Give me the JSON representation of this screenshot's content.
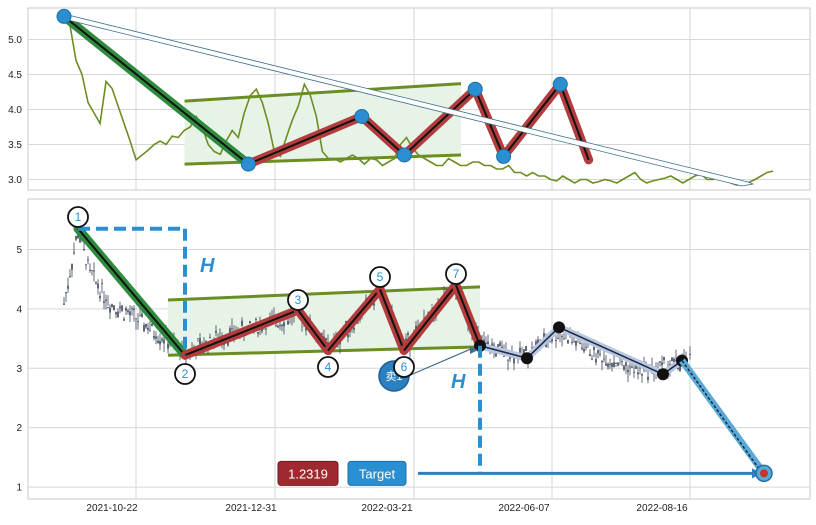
{
  "chart_data": [
    {
      "type": "line",
      "panel": "top",
      "y_ticks": [
        3.0,
        3.5,
        4.0,
        4.5,
        5.0
      ],
      "ylim": [
        2.85,
        5.45
      ],
      "grid": true,
      "price_series": {
        "color": "#6b8e23",
        "x_index": [
          0,
          3,
          6,
          9,
          12,
          15,
          18,
          21,
          24,
          27,
          30,
          33,
          36,
          39,
          42,
          45,
          48,
          51,
          54,
          57,
          60,
          63,
          66,
          69,
          72,
          75,
          78,
          81,
          84,
          87,
          90,
          93,
          96,
          99,
          102,
          105,
          108,
          111,
          114,
          117,
          120,
          123,
          126,
          129,
          132,
          135,
          138,
          141,
          144,
          147,
          150,
          153,
          156,
          159,
          162,
          165,
          168,
          171,
          174,
          177,
          180,
          183,
          186,
          189,
          192,
          195,
          198,
          201,
          204,
          207,
          210,
          213,
          216,
          219,
          222,
          225,
          228,
          231,
          234,
          237,
          240,
          243,
          246,
          249,
          252,
          255,
          258,
          261,
          264,
          267,
          270,
          273,
          276,
          279,
          282,
          285,
          288,
          291,
          294,
          297,
          300,
          303,
          306,
          309,
          312,
          315,
          318,
          321,
          324,
          327,
          330,
          333,
          336,
          339,
          342,
          345,
          348,
          351,
          354
        ],
        "values": [
          5.33,
          5.2,
          4.7,
          4.5,
          4.1,
          3.95,
          3.8,
          4.4,
          4.3,
          4.05,
          3.8,
          3.55,
          3.28,
          3.35,
          3.42,
          3.5,
          3.55,
          3.5,
          3.62,
          3.6,
          3.7,
          3.75,
          3.9,
          3.75,
          3.5,
          3.4,
          3.36,
          3.55,
          3.7,
          3.6,
          3.95,
          4.2,
          4.29,
          4.1,
          3.8,
          3.4,
          3.33,
          3.6,
          3.85,
          4.05,
          4.36,
          4.2,
          3.9,
          3.4,
          3.3,
          3.3,
          3.25,
          3.3,
          3.35,
          3.3,
          3.22,
          3.3,
          3.28,
          3.2,
          3.25,
          3.3,
          3.5,
          3.6,
          3.45,
          3.35,
          3.3,
          3.25,
          3.2,
          3.2,
          3.3,
          3.25,
          3.2,
          3.2,
          3.25,
          3.25,
          3.2,
          3.2,
          3.15,
          3.15,
          3.2,
          3.1,
          3.1,
          3.05,
          3.1,
          3.05,
          3.05,
          3.0,
          2.98,
          3.05,
          3.0,
          2.95,
          3.0,
          3.0,
          2.95,
          2.97,
          3.0,
          2.98,
          2.95,
          3.0,
          3.05,
          3.1,
          3.0,
          2.95,
          2.98,
          3.0,
          3.02,
          3.05,
          3.0,
          2.95,
          3.0,
          3.05,
          3.08,
          3.0,
          3.0,
          3.05,
          3.0,
          2.95,
          2.92,
          2.95,
          2.96,
          3.0,
          3.05,
          3.1,
          3.12
        ]
      },
      "channel": {
        "upper": [
          [
            0.17,
            4.12
          ],
          [
            0.56,
            4.37
          ]
        ],
        "lower": [
          [
            0.17,
            3.22
          ],
          [
            0.56,
            3.35
          ]
        ],
        "fill": "#e6f3e6",
        "color": "#6b8e23"
      },
      "legs": [
        {
          "from": [
            5.33,
            0
          ],
          "to": [
            3.22,
            0.26
          ],
          "color": "#2e8b3e"
        },
        {
          "from": [
            3.22,
            0.26
          ],
          "to": [
            3.9,
            0.42
          ]
        },
        {
          "from": [
            3.9,
            0.42
          ],
          "to": [
            3.35,
            0.48
          ]
        },
        {
          "from": [
            3.35,
            0.48
          ],
          "to": [
            4.29,
            0.58
          ]
        },
        {
          "from": [
            4.29,
            0.58
          ],
          "to": [
            3.33,
            0.62
          ]
        },
        {
          "from": [
            3.33,
            0.62
          ],
          "to": [
            4.36,
            0.7
          ]
        },
        {
          "from": [
            4.36,
            0.7
          ],
          "to": [
            3.28,
            0.74
          ]
        }
      ],
      "pivot_values": [
        5.33,
        3.22,
        3.9,
        3.35,
        4.29,
        3.33,
        4.36
      ]
    },
    {
      "type": "candlestick",
      "panel": "bottom",
      "x_ticks": [
        "2021-10-22",
        "2021-12-31",
        "2022-03-21",
        "2022-06-07",
        "2022-08-16"
      ],
      "y_ticks": [
        1,
        2,
        3,
        4,
        5
      ],
      "ylim": [
        0.8,
        5.85
      ],
      "grid": true,
      "pattern_points": [
        {
          "label": "1",
          "value": 5.35
        },
        {
          "label": "2",
          "value": 3.22
        },
        {
          "label": "3",
          "value": 3.98
        },
        {
          "label": "4",
          "value": 3.3
        },
        {
          "label": "5",
          "value": 4.33
        },
        {
          "label": "6",
          "value": 3.3
        },
        {
          "label": "7",
          "value": 4.4
        }
      ],
      "breakout_value": 3.38,
      "after_points": [
        3.17,
        3.69,
        2.9,
        3.13
      ],
      "target_value": 1.2319,
      "target_label": "1.2319",
      "target_button": "Target",
      "height_label": "H",
      "sell_label": "卖1"
    }
  ]
}
